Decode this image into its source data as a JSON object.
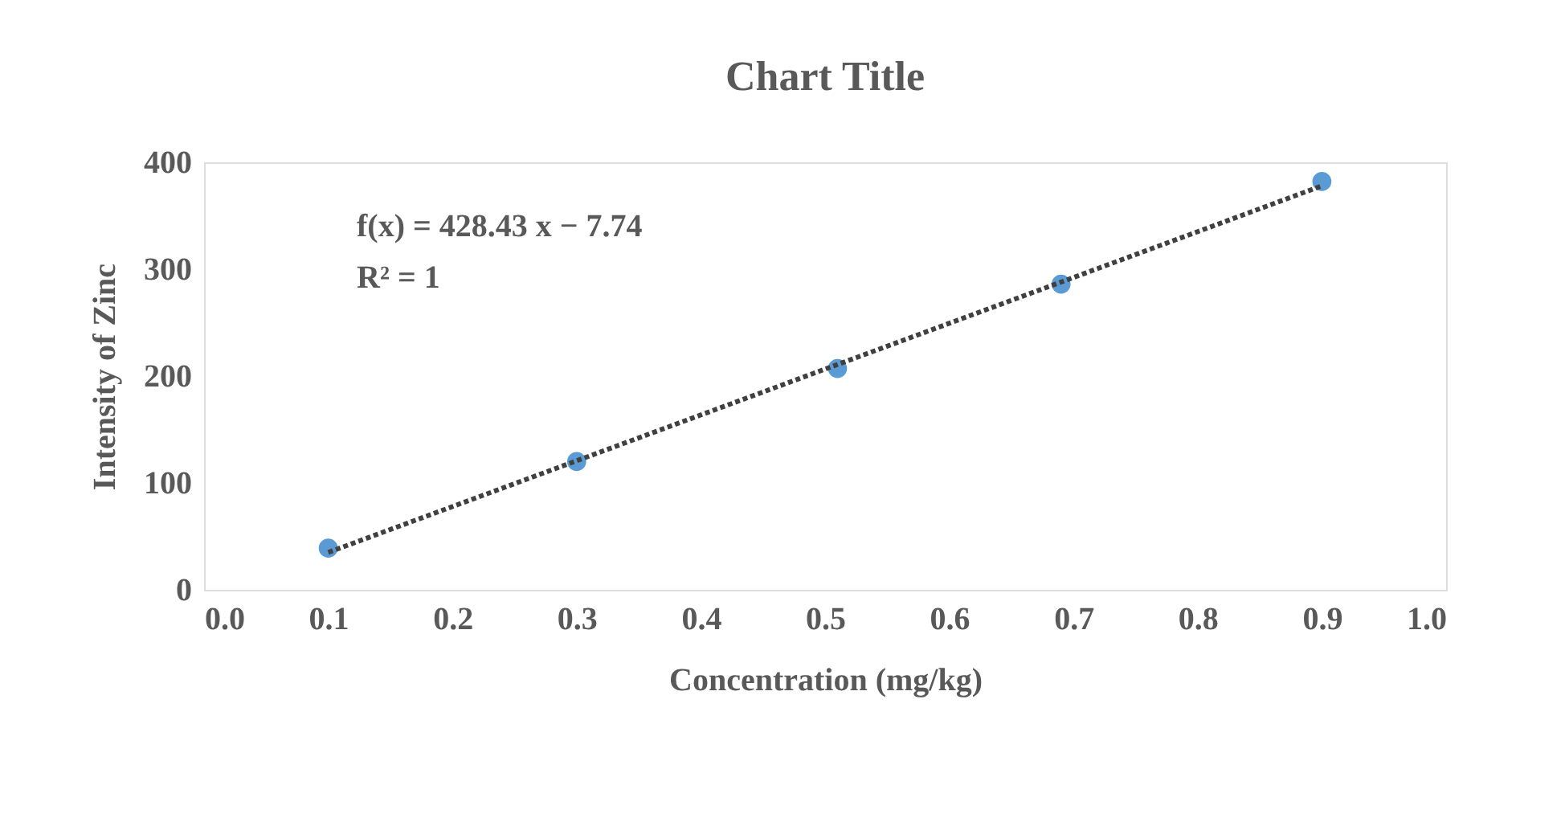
{
  "chart_data": {
    "type": "scatter",
    "title": "Chart Title",
    "xlabel": "Concentration (mg/kg)",
    "ylabel": "Intensity of Zinc",
    "x": [
      0.1,
      0.3,
      0.51,
      0.69,
      0.9
    ],
    "series": [
      {
        "color": "#5b9bd5",
        "values": [
          39,
          120,
          207,
          286,
          382
        ]
      },
      {
        "type": "line",
        "color": "#404040",
        "x": [
          0.1,
          0.9
        ],
        "values": [
          35,
          378
        ],
        "line_style": "dotted",
        "marker": "none"
      }
    ],
    "xlim": [
      0,
      1
    ],
    "ylim": [
      0,
      400
    ],
    "xticks": [
      {
        "value": 0,
        "label": "0.0"
      },
      0.1,
      0.2,
      0.3,
      0.4,
      0.5,
      0.6,
      0.7,
      0.8,
      0.9,
      {
        "value": 1,
        "label": "1.0"
      }
    ],
    "yticks": [
      0,
      100,
      200,
      300,
      400
    ],
    "annotations": [
      "f(x) = 428.43 x − 7.74",
      "R² = 1"
    ],
    "grid": false,
    "marker": "circle"
  }
}
